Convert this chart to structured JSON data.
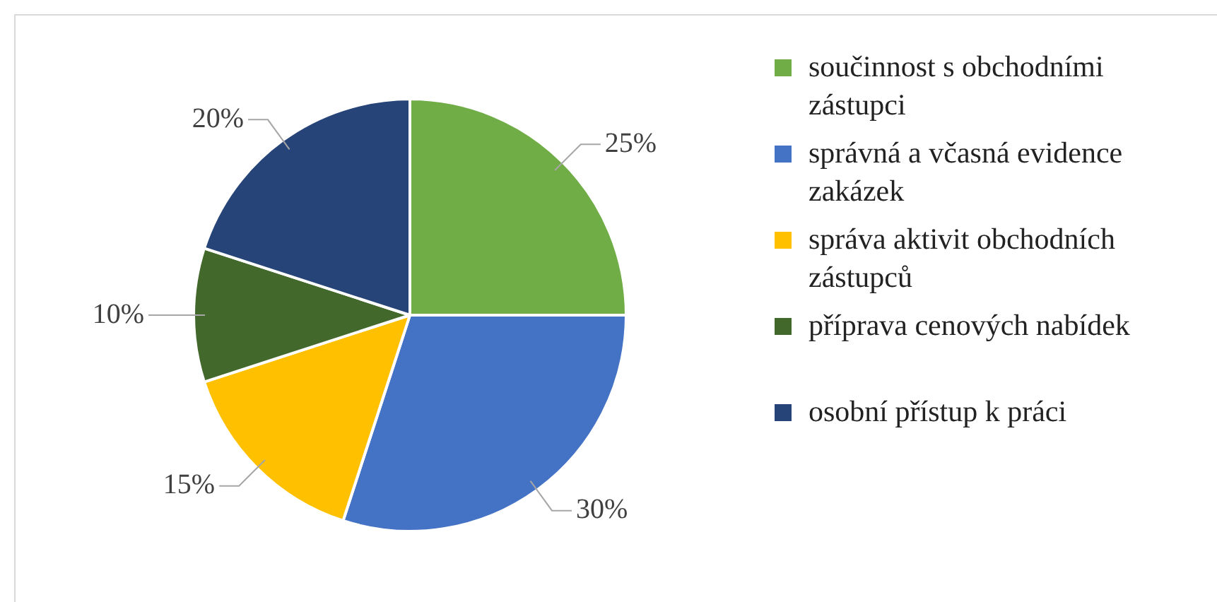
{
  "chart_data": {
    "type": "pie",
    "categories": [
      "součinnost s obchodními zástupci",
      "správná a včasná evidence zakázek",
      "správa aktivit obchodních zástupců",
      "příprava cenových nabídek",
      "osobní přístup k práci"
    ],
    "values": [
      25,
      30,
      15,
      10,
      20
    ],
    "colors": [
      "#70ad47",
      "#4472c4",
      "#ffc000",
      "#43682b",
      "#264478"
    ],
    "value_labels": [
      "25%",
      "30%",
      "15%",
      "10%",
      "20%"
    ],
    "legend": "right"
  }
}
